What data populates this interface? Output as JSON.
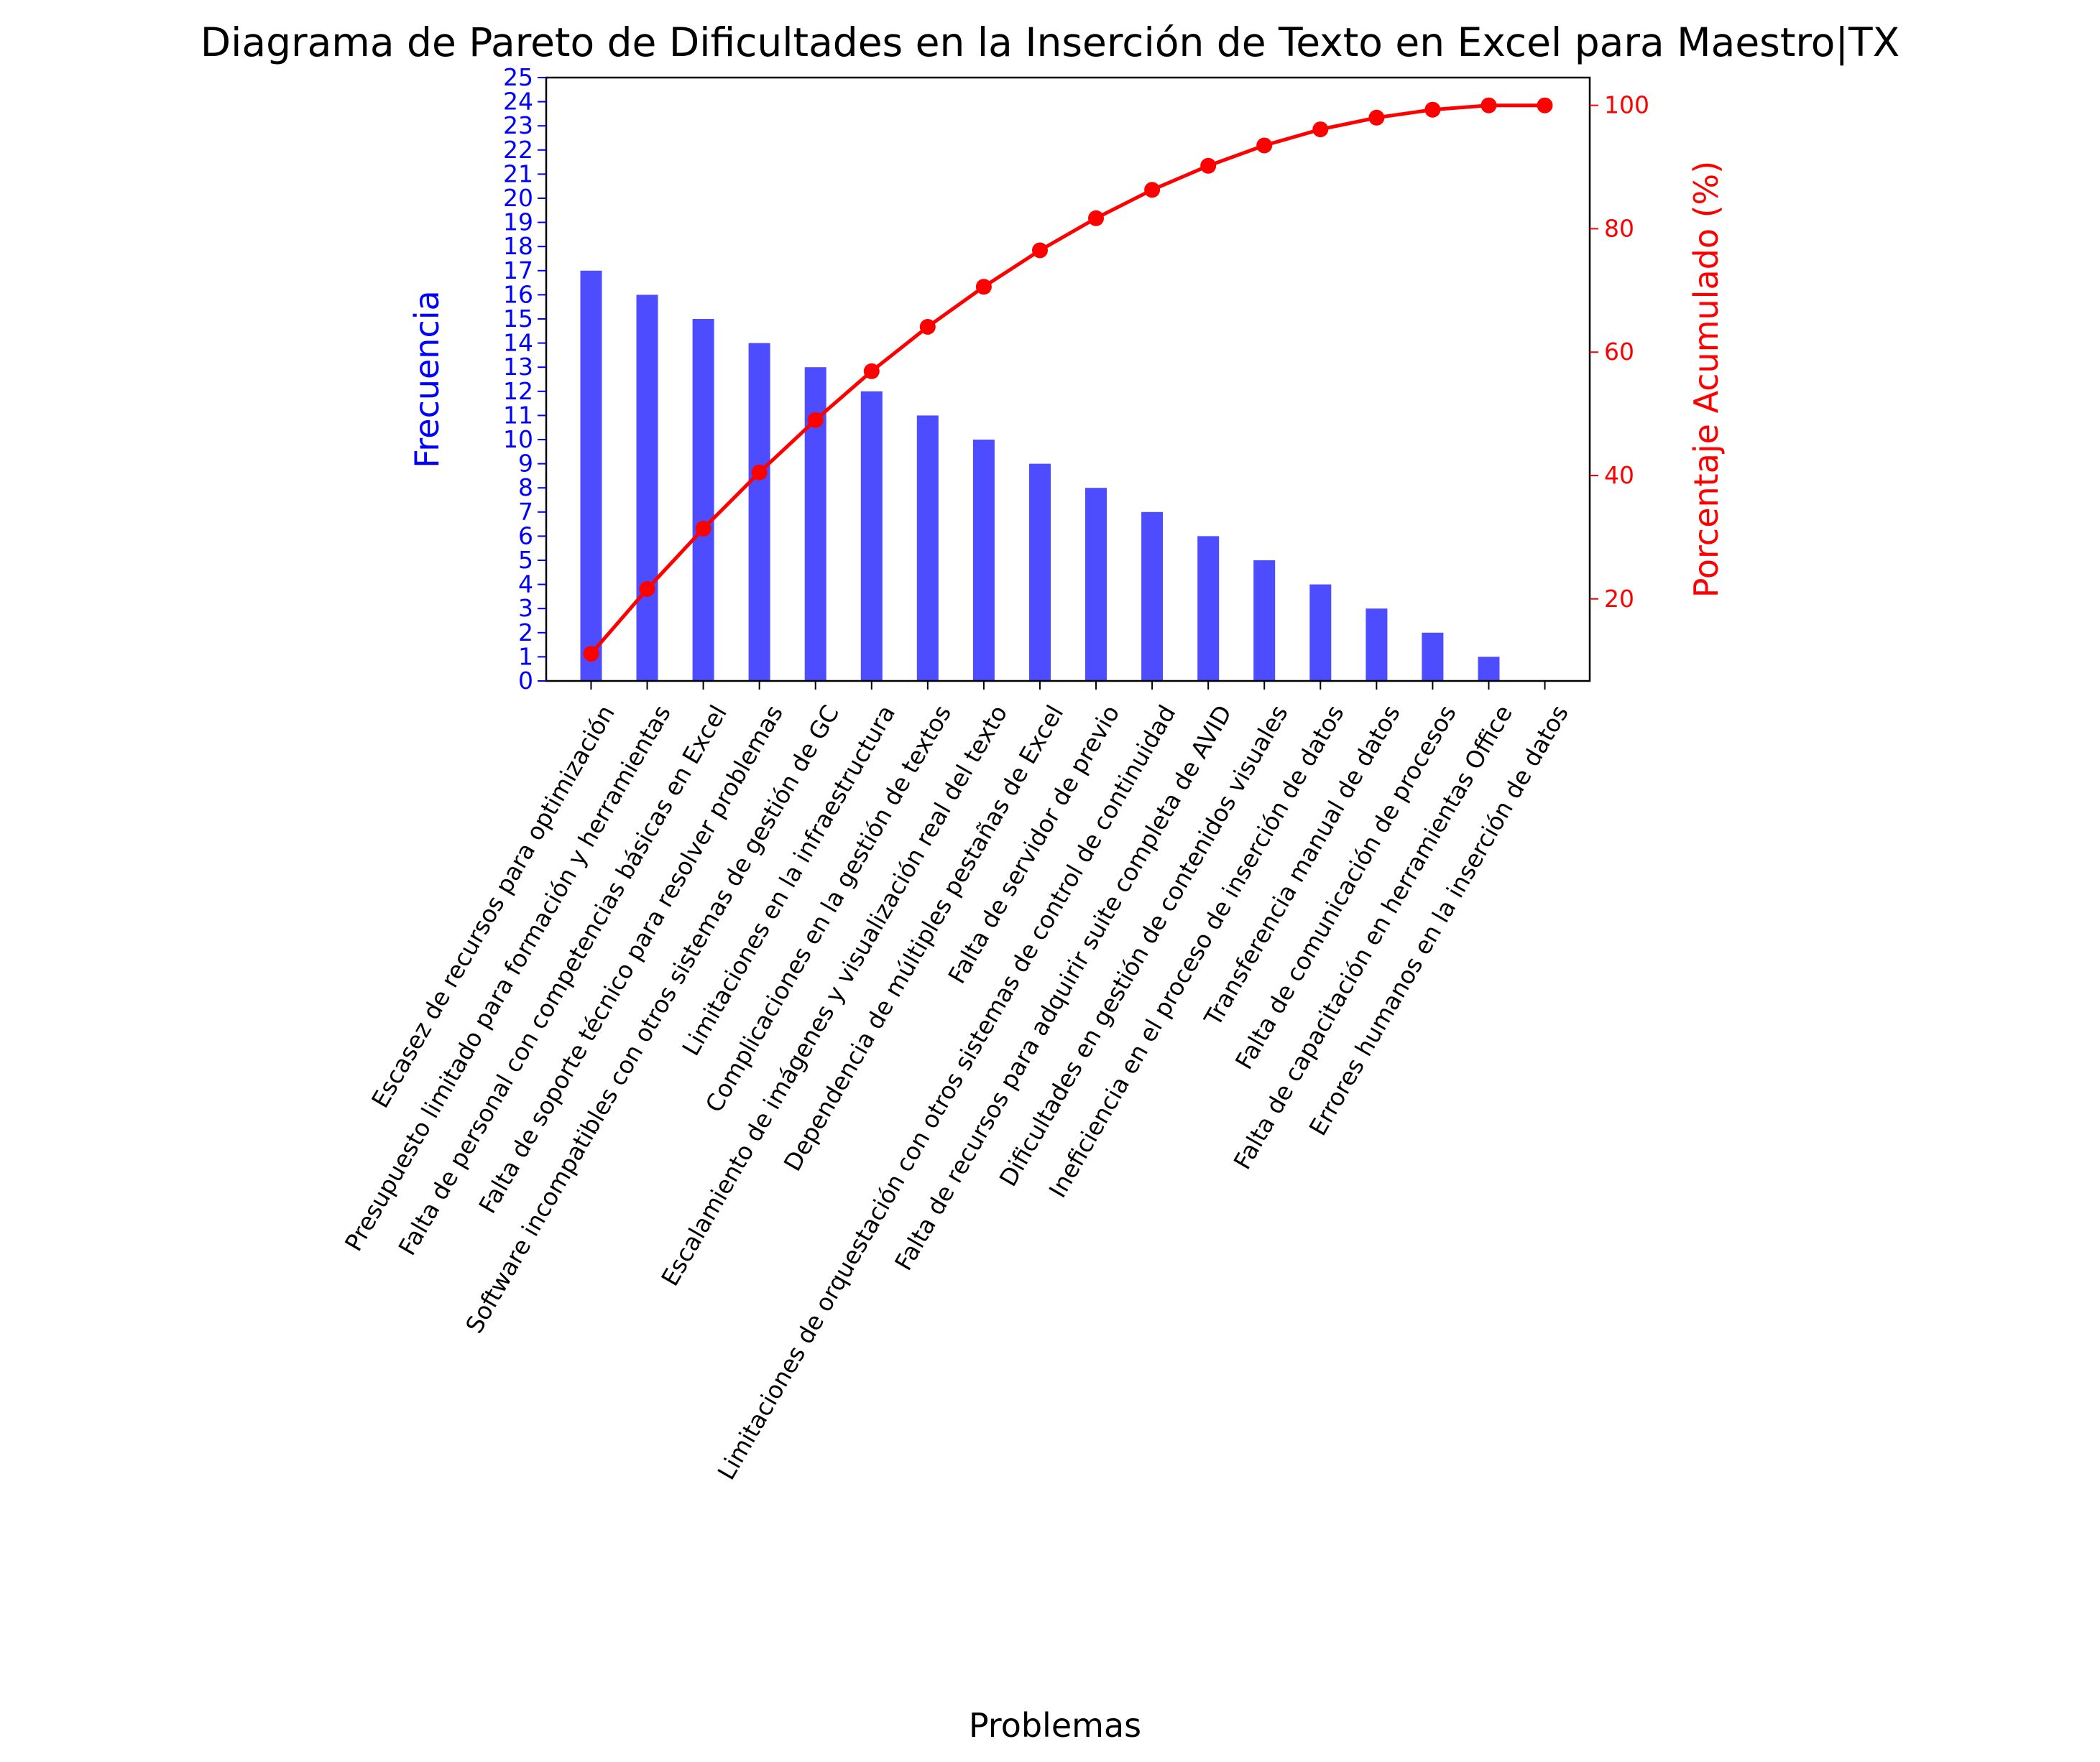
{
  "chart_data": {
    "type": "bar",
    "title": "Diagrama de Pareto de Dificultades en la Inserción de Texto en Excel para Maestro|TX",
    "xlabel": "Problemas",
    "ylabel": "Frecuencia",
    "ylabel_right": "Porcentaje Acumulado (%)",
    "ylim": [
      0,
      25
    ],
    "ylim_right": [
      6.7,
      104.5
    ],
    "yticks": [
      0,
      1,
      2,
      3,
      4,
      5,
      6,
      7,
      8,
      9,
      10,
      11,
      12,
      13,
      14,
      15,
      16,
      17,
      18,
      19,
      20,
      21,
      22,
      23,
      24,
      25
    ],
    "yticks_right": [
      20,
      40,
      60,
      80,
      100
    ],
    "grid": false,
    "legend": "none",
    "categories": [
      "Escasez de recursos para optimización",
      "Presupuesto limitado para formación y herramientas",
      "Falta de personal con competencias básicas en Excel",
      "Falta de soporte técnico para resolver problemas",
      "Software incompatibles con otros sistemas de gestión de GC",
      "Limitaciones en la infraestructura",
      "Complicaciones en la gestión de textos",
      "Escalamiento de imágenes y visualización real del texto",
      "Dependencia de múltiples pestañas de Excel",
      "Falta de servidor de previo",
      "Limitaciones de orquestación con otros sistemas de control de continuidad",
      "Falta de recursos para adquirir suite completa de AVID",
      "Dificultades en gestión de contenidos visuales",
      "Ineficiencia en el proceso de inserción de datos",
      "Transferencia manual de datos",
      "Falta de comunicación de procesos",
      "Falta de capacitación en herramientas Office",
      "Errores humanos en la inserción de datos"
    ],
    "series": [
      {
        "name": "Frecuencia",
        "kind": "bar",
        "axis": "left",
        "color": "#4d4dff",
        "values": [
          17,
          16,
          15,
          14,
          13,
          12,
          11,
          10,
          9,
          8,
          7,
          6,
          5,
          4,
          3,
          2,
          1,
          0
        ]
      },
      {
        "name": "Porcentaje Acumulado (%)",
        "kind": "line",
        "axis": "right",
        "color": "#ff0000",
        "values": [
          11.1,
          21.6,
          31.4,
          40.5,
          49.0,
          56.9,
          64.1,
          70.6,
          76.5,
          81.7,
          86.3,
          90.2,
          93.5,
          96.1,
          98.0,
          99.3,
          100.0,
          100.0
        ]
      }
    ]
  },
  "colors": {
    "left_axis": "#0000ff",
    "right_axis": "#ff0000",
    "bar": "#4d4dff",
    "line": "#ff0000"
  }
}
